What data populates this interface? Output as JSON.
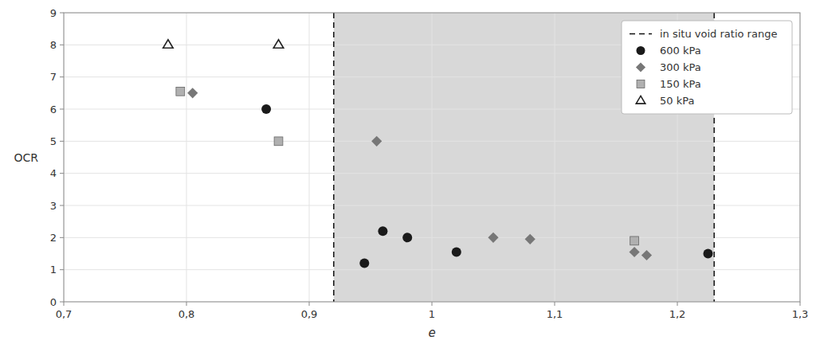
{
  "chart_data": {
    "type": "scatter",
    "xlabel": "e",
    "ylabel": "OCR",
    "xlim": [
      0.7,
      1.3
    ],
    "ylim": [
      0,
      9
    ],
    "xticks": [
      {
        "value": 0.7,
        "label": "0,7"
      },
      {
        "value": 0.8,
        "label": "0,8"
      },
      {
        "value": 0.9,
        "label": "0,9"
      },
      1,
      {
        "value": 1.1,
        "label": "1,1"
      },
      {
        "value": 1.2,
        "label": "1,2"
      },
      {
        "value": 1.3,
        "label": "1,3"
      }
    ],
    "yticks": [
      0,
      1,
      2,
      3,
      4,
      5,
      6,
      7,
      8,
      9
    ],
    "grid": true,
    "legend": "upper right",
    "shaded_region": {
      "x": [
        0.92,
        1.23
      ],
      "color": "#d8d8d8"
    },
    "reference_lines": {
      "name": "in situ void ratio range",
      "x": [
        0.92,
        1.23
      ],
      "color": "#111111",
      "line_style": "dashed"
    },
    "series": [
      {
        "name": "600 kPa",
        "color": "#1a1a1a",
        "marker": "circle",
        "x": [
          0.865,
          0.945,
          0.96,
          0.98,
          1.02,
          1.225
        ],
        "values": [
          6.0,
          1.2,
          2.2,
          2.0,
          1.55,
          1.5
        ]
      },
      {
        "name": "300 kPa",
        "color": "#777777",
        "marker": "diamond",
        "x": [
          0.805,
          0.955,
          1.05,
          1.08,
          1.165,
          1.175
        ],
        "values": [
          6.5,
          5.0,
          2.0,
          1.95,
          1.55,
          1.45
        ]
      },
      {
        "name": "150 kPa",
        "color": "#b0b0b0",
        "marker": "square",
        "x": [
          0.795,
          0.875,
          1.165
        ],
        "values": [
          6.55,
          5.0,
          1.9
        ]
      },
      {
        "name": "50 kPa",
        "color": "#222222",
        "marker": "triangle-open",
        "x": [
          0.785,
          0.875
        ],
        "values": [
          8.0,
          8.0
        ]
      }
    ]
  }
}
